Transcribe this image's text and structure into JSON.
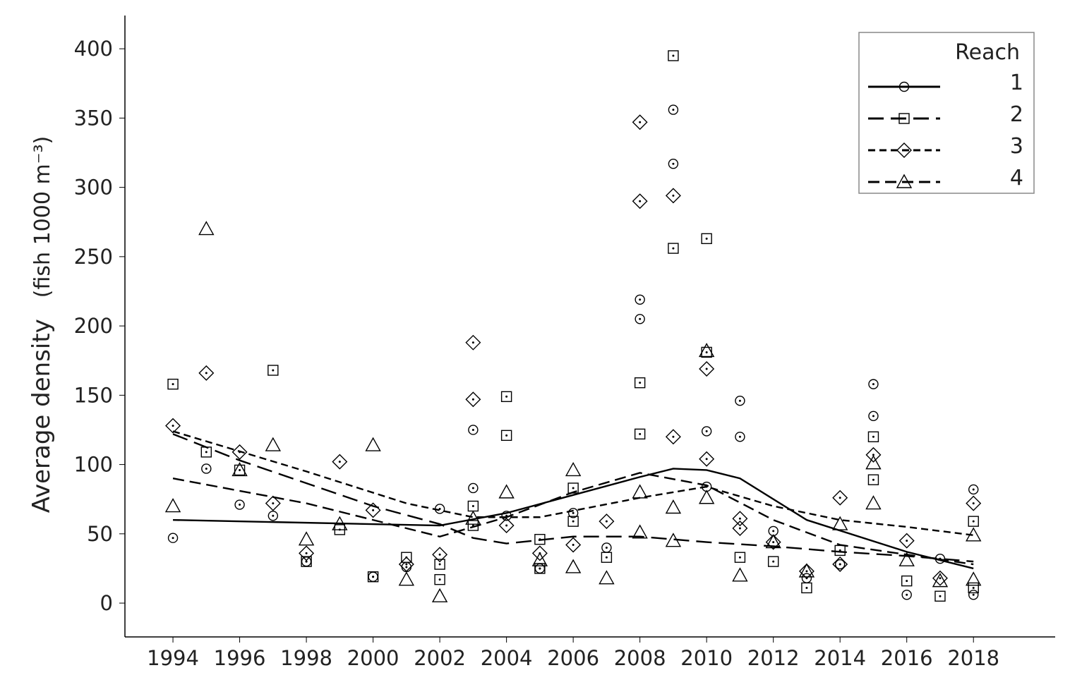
{
  "chart_data": {
    "type": "scatter",
    "ylabel": "Average density",
    "ylabel_unit": "(fish 1000 m⁻³)",
    "legend_title": "Reach",
    "legend": "upper right",
    "xlim": [
      1992.56,
      2020.45
    ],
    "ylim": [
      -24.4,
      424
    ],
    "xticks": [
      1994,
      1996,
      1998,
      2000,
      2002,
      2004,
      2006,
      2008,
      2010,
      2012,
      2014,
      2016,
      2018
    ],
    "yticks": [
      0,
      50,
      100,
      150,
      200,
      250,
      300,
      350,
      400
    ],
    "series": [
      {
        "name": "1",
        "marker": "circle",
        "dash": "solid",
        "color": "#000000",
        "x": [
          1994,
          1995,
          1996,
          1997,
          1998,
          2000,
          2001,
          2002,
          2003,
          2003,
          2004,
          2005,
          2006,
          2007,
          2008,
          2008,
          2009,
          2009,
          2010,
          2010,
          2011,
          2011,
          2012,
          2013,
          2014,
          2015,
          2015,
          2016,
          2017,
          2018,
          2018
        ],
        "values": [
          47,
          97,
          71,
          63,
          30,
          19,
          26,
          68,
          125,
          83,
          63,
          25,
          65,
          40,
          219,
          205,
          356,
          317,
          124,
          84,
          146,
          120,
          52,
          18,
          28,
          158,
          135,
          6,
          32,
          82,
          6
        ],
        "trend": {
          "x": [
            1994,
            2002,
            2004,
            2006,
            2008,
            2009,
            2010,
            2011,
            2013,
            2016,
            2018
          ],
          "values": [
            60,
            56,
            65,
            78,
            91,
            97,
            96,
            90,
            60,
            37,
            25
          ]
        }
      },
      {
        "name": "2",
        "marker": "square",
        "dash": "long-dash",
        "color": "#000000",
        "x": [
          1994,
          1995,
          1996,
          1997,
          1998,
          1999,
          2000,
          2001,
          2002,
          2002,
          2003,
          2003,
          2004,
          2004,
          2005,
          2005,
          2006,
          2006,
          2007,
          2008,
          2008,
          2009,
          2009,
          2010,
          2010,
          2011,
          2012,
          2013,
          2014,
          2015,
          2015,
          2016,
          2017,
          2018,
          2018
        ],
        "values": [
          158,
          109,
          96,
          168,
          30,
          53,
          19,
          33,
          28,
          17,
          70,
          56,
          149,
          121,
          46,
          25,
          83,
          59,
          33,
          159,
          122,
          395,
          256,
          263,
          181,
          33,
          30,
          11,
          38,
          120,
          89,
          16,
          5,
          59,
          11
        ],
        "trend": {
          "x": [
            1994,
            1996,
            2000,
            2002,
            2003,
            2004,
            2006,
            2008,
            2010,
            2012,
            2014,
            2016,
            2018
          ],
          "values": [
            122,
            103,
            70,
            57,
            47,
            43,
            48,
            48,
            44,
            41,
            37,
            34,
            30
          ]
        }
      },
      {
        "name": "3",
        "marker": "diamond",
        "dash": "short-dash",
        "color": "#000000",
        "x": [
          1994,
          1995,
          1996,
          1997,
          1998,
          1999,
          2000,
          2001,
          2002,
          2003,
          2003,
          2004,
          2005,
          2006,
          2007,
          2008,
          2008,
          2009,
          2009,
          2010,
          2010,
          2011,
          2011,
          2012,
          2013,
          2014,
          2014,
          2015,
          2016,
          2017,
          2018
        ],
        "values": [
          128,
          166,
          109,
          72,
          36,
          102,
          67,
          28,
          35,
          188,
          147,
          56,
          36,
          42,
          59,
          347,
          290,
          294,
          120,
          169,
          104,
          61,
          54,
          44,
          23,
          76,
          28,
          107,
          45,
          18,
          72
        ],
        "trend": {
          "x": [
            1994,
            1998,
            2001,
            2003,
            2005,
            2008,
            2010,
            2012,
            2014,
            2016,
            2018
          ],
          "values": [
            124,
            95,
            72,
            62,
            62,
            76,
            84,
            70,
            60,
            55,
            49
          ]
        }
      },
      {
        "name": "4",
        "marker": "triangle",
        "dash": "dash",
        "color": "#000000",
        "x": [
          1994,
          1995,
          1996,
          1997,
          1998,
          1999,
          2000,
          2001,
          2002,
          2003,
          2004,
          2005,
          2006,
          2006,
          2007,
          2008,
          2008,
          2009,
          2009,
          2010,
          2010,
          2011,
          2012,
          2013,
          2014,
          2015,
          2015,
          2016,
          2017,
          2018,
          2018
        ],
        "values": [
          70,
          270,
          96,
          114,
          46,
          57,
          114,
          17,
          5,
          61,
          80,
          31,
          96,
          26,
          18,
          80,
          51,
          69,
          45,
          182,
          76,
          20,
          44,
          23,
          57,
          101,
          72,
          31,
          16,
          49,
          17
        ],
        "trend": {
          "x": [
            1994,
            1998,
            2002,
            2004,
            2006,
            2008,
            2010,
            2012,
            2014,
            2016,
            2018
          ],
          "values": [
            90,
            72,
            48,
            62,
            80,
            94,
            85,
            60,
            42,
            35,
            28
          ]
        }
      }
    ]
  }
}
